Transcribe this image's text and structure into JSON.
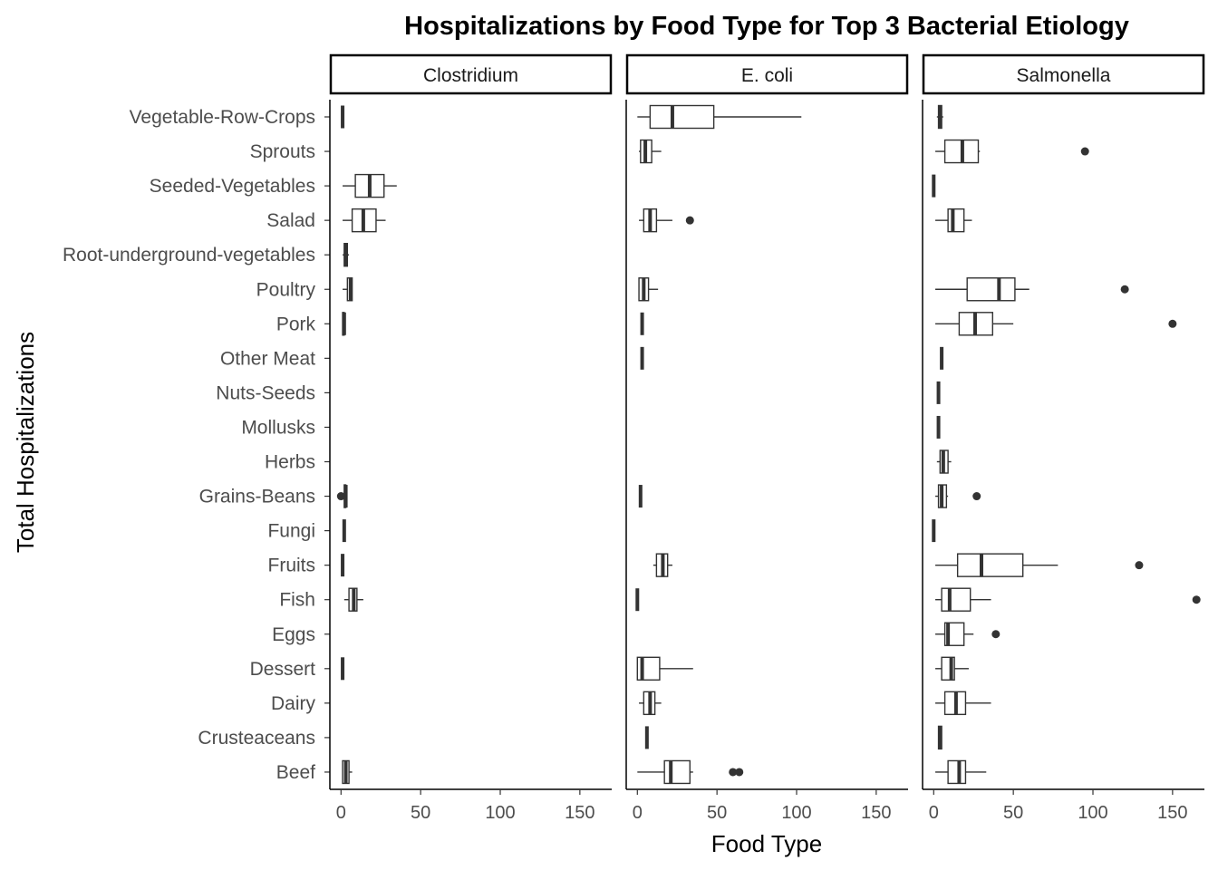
{
  "chart_data": {
    "type": "boxplot",
    "title": "Hospitalizations by Food Type for Top 3 Bacterial Etiology",
    "xlabel": "Food Type",
    "ylabel": "Total Hospitalizations",
    "xlim": [
      -7,
      170
    ],
    "x_ticks": [
      0,
      50,
      100,
      150
    ],
    "grid": false,
    "categories": [
      "Vegetable-Row-Crops",
      "Sprouts",
      "Seeded-Vegetables",
      "Salad",
      "Root-underground-vegetables",
      "Poultry",
      "Pork",
      "Other Meat",
      "Nuts-Seeds",
      "Mollusks",
      "Herbs",
      "Grains-Beans",
      "Fungi",
      "Fruits",
      "Fish",
      "Eggs",
      "Dessert",
      "Dairy",
      "Crusteaceans",
      "Beef"
    ],
    "facets": [
      {
        "name": "Clostridium",
        "boxes": [
          {
            "category": "Vegetable-Row-Crops",
            "min": 1,
            "q1": 1,
            "median": 1,
            "q3": 1,
            "max": 1,
            "outliers": []
          },
          {
            "category": "Seeded-Vegetables",
            "min": 1,
            "q1": 9,
            "median": 18,
            "q3": 27,
            "max": 35,
            "outliers": []
          },
          {
            "category": "Salad",
            "min": 1,
            "q1": 7,
            "median": 14,
            "q3": 22,
            "max": 28,
            "outliers": []
          },
          {
            "category": "Root-underground-vegetables",
            "min": 1,
            "q1": 2,
            "median": 3,
            "q3": 4,
            "max": 5,
            "outliers": []
          },
          {
            "category": "Poultry",
            "min": 1,
            "q1": 4,
            "median": 6,
            "q3": 7,
            "max": 7,
            "outliers": []
          },
          {
            "category": "Pork",
            "min": 1,
            "q1": 1,
            "median": 2,
            "q3": 2,
            "max": 2,
            "outliers": []
          },
          {
            "category": "Grains-Beans",
            "min": 2,
            "q1": 2,
            "median": 3,
            "q3": 3,
            "max": 3,
            "outliers": [
              0
            ]
          },
          {
            "category": "Fungi",
            "min": 2,
            "q1": 2,
            "median": 2,
            "q3": 2,
            "max": 2,
            "outliers": []
          },
          {
            "category": "Fruits",
            "min": 1,
            "q1": 1,
            "median": 1,
            "q3": 1,
            "max": 1,
            "outliers": []
          },
          {
            "category": "Fish",
            "min": 2,
            "q1": 5,
            "median": 8,
            "q3": 10,
            "max": 14,
            "outliers": []
          },
          {
            "category": "Dessert",
            "min": 1,
            "q1": 1,
            "median": 1,
            "q3": 1,
            "max": 1,
            "outliers": []
          },
          {
            "category": "Beef",
            "min": 1,
            "q1": 1,
            "median": 3,
            "q3": 5,
            "max": 7,
            "outliers": []
          }
        ]
      },
      {
        "name": "E. coli",
        "boxes": [
          {
            "category": "Vegetable-Row-Crops",
            "min": 0,
            "q1": 8,
            "median": 22,
            "q3": 48,
            "max": 103,
            "outliers": []
          },
          {
            "category": "Sprouts",
            "min": 1,
            "q1": 2,
            "median": 5,
            "q3": 9,
            "max": 15,
            "outliers": []
          },
          {
            "category": "Salad",
            "min": 1,
            "q1": 4,
            "median": 8,
            "q3": 12,
            "max": 22,
            "outliers": [
              33
            ]
          },
          {
            "category": "Poultry",
            "min": 1,
            "q1": 1,
            "median": 4,
            "q3": 7,
            "max": 13,
            "outliers": []
          },
          {
            "category": "Pork",
            "min": 3,
            "q1": 3,
            "median": 3,
            "q3": 3,
            "max": 3,
            "outliers": []
          },
          {
            "category": "Other Meat",
            "min": 3,
            "q1": 3,
            "median": 3,
            "q3": 3,
            "max": 3,
            "outliers": []
          },
          {
            "category": "Grains-Beans",
            "min": 2,
            "q1": 2,
            "median": 2,
            "q3": 2,
            "max": 2,
            "outliers": []
          },
          {
            "category": "Fruits",
            "min": 10,
            "q1": 12,
            "median": 16,
            "q3": 19,
            "max": 22,
            "outliers": []
          },
          {
            "category": "Fish",
            "min": 0,
            "q1": 0,
            "median": 0,
            "q3": 0,
            "max": 0,
            "outliers": []
          },
          {
            "category": "Dessert",
            "min": 0,
            "q1": 0,
            "median": 3,
            "q3": 14,
            "max": 35,
            "outliers": []
          },
          {
            "category": "Dairy",
            "min": 1,
            "q1": 4,
            "median": 8,
            "q3": 11,
            "max": 15,
            "outliers": []
          },
          {
            "category": "Crusteaceans",
            "min": 6,
            "q1": 6,
            "median": 6,
            "q3": 6,
            "max": 6,
            "outliers": []
          },
          {
            "category": "Beef",
            "min": 0,
            "q1": 17,
            "median": 21,
            "q3": 33,
            "max": 35,
            "outliers": [
              60,
              64
            ]
          }
        ]
      },
      {
        "name": "Salmonella",
        "boxes": [
          {
            "category": "Vegetable-Row-Crops",
            "min": 2,
            "q1": 3,
            "median": 4,
            "q3": 5,
            "max": 6,
            "outliers": []
          },
          {
            "category": "Sprouts",
            "min": 1,
            "q1": 7,
            "median": 18,
            "q3": 28,
            "max": 29,
            "outliers": [
              95
            ]
          },
          {
            "category": "Seeded-Vegetables",
            "min": 0,
            "q1": 0,
            "median": 0,
            "q3": 0,
            "max": 0,
            "outliers": []
          },
          {
            "category": "Salad",
            "min": 1,
            "q1": 9,
            "median": 12,
            "q3": 19,
            "max": 24,
            "outliers": []
          },
          {
            "category": "Poultry",
            "min": 1,
            "q1": 21,
            "median": 41,
            "q3": 51,
            "max": 60,
            "outliers": [
              120
            ]
          },
          {
            "category": "Pork",
            "min": 1,
            "q1": 16,
            "median": 26,
            "q3": 37,
            "max": 50,
            "outliers": [
              150
            ]
          },
          {
            "category": "Other Meat",
            "min": 5,
            "q1": 5,
            "median": 5,
            "q3": 5,
            "max": 5,
            "outliers": []
          },
          {
            "category": "Nuts-Seeds",
            "min": 3,
            "q1": 3,
            "median": 3,
            "q3": 3,
            "max": 3,
            "outliers": []
          },
          {
            "category": "Mollusks",
            "min": 3,
            "q1": 3,
            "median": 3,
            "q3": 3,
            "max": 3,
            "outliers": []
          },
          {
            "category": "Herbs",
            "min": 2,
            "q1": 4,
            "median": 6,
            "q3": 9,
            "max": 11,
            "outliers": []
          },
          {
            "category": "Grains-Beans",
            "min": 1,
            "q1": 3,
            "median": 5,
            "q3": 8,
            "max": 9,
            "outliers": [
              27
            ]
          },
          {
            "category": "Fungi",
            "min": 0,
            "q1": 0,
            "median": 0,
            "q3": 0,
            "max": 0,
            "outliers": []
          },
          {
            "category": "Fruits",
            "min": 1,
            "q1": 15,
            "median": 30,
            "q3": 56,
            "max": 78,
            "outliers": [
              129
            ]
          },
          {
            "category": "Fish",
            "min": 1,
            "q1": 5,
            "median": 10,
            "q3": 23,
            "max": 36,
            "outliers": [
              165
            ]
          },
          {
            "category": "Eggs",
            "min": 1,
            "q1": 7,
            "median": 9,
            "q3": 19,
            "max": 25,
            "outliers": [
              39
            ]
          },
          {
            "category": "Dessert",
            "min": 1,
            "q1": 5,
            "median": 11,
            "q3": 13,
            "max": 22,
            "outliers": []
          },
          {
            "category": "Dairy",
            "min": 1,
            "q1": 7,
            "median": 14,
            "q3": 20,
            "max": 36,
            "outliers": []
          },
          {
            "category": "Crusteaceans",
            "min": 3,
            "q1": 3,
            "median": 4,
            "q3": 5,
            "max": 5,
            "outliers": []
          },
          {
            "category": "Beef",
            "min": 1,
            "q1": 9,
            "median": 16,
            "q3": 20,
            "max": 33,
            "outliers": []
          }
        ]
      }
    ]
  }
}
